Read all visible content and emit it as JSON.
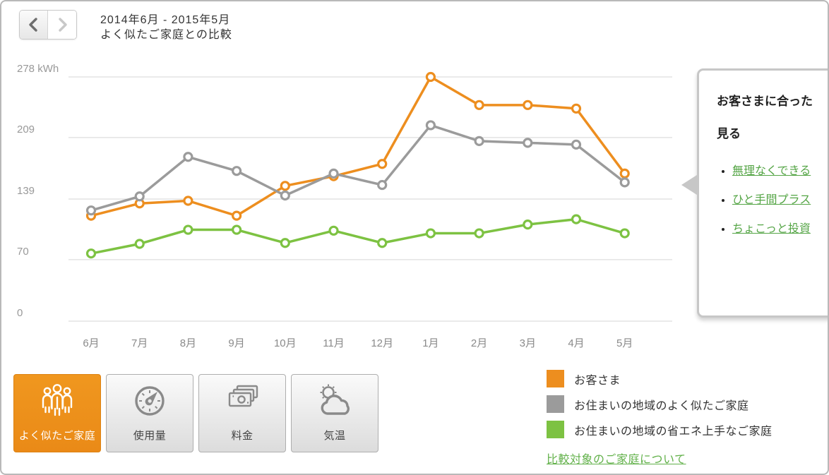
{
  "header": {
    "title_line1": "2014年6月 - 2015年5月",
    "title_line2": "よく似たご家庭との比較",
    "nav": {
      "prev_icon": "chevron-left",
      "next_icon": "chevron-right",
      "next_disabled": true
    }
  },
  "chart_data": {
    "type": "line",
    "title": "よく似たご家庭との比較",
    "xlabel": "",
    "ylabel": "kWh",
    "ylim": [
      0,
      278
    ],
    "grid": true,
    "legend_position": "bottom-right",
    "categories": [
      "6月",
      "7月",
      "8月",
      "9月",
      "10月",
      "11月",
      "12月",
      "1月",
      "2月",
      "3月",
      "4月",
      "5月"
    ],
    "yticks": [
      278,
      209,
      139,
      70,
      0
    ],
    "ytick_labels": [
      "278 kWh",
      "209",
      "139",
      "70",
      "0"
    ],
    "series": [
      {
        "name": "お客さま",
        "color": "#ED8E1F",
        "values": [
          120,
          134,
          137,
          120,
          154,
          165,
          179,
          278,
          246,
          246,
          242,
          168
        ]
      },
      {
        "name": "お住まいの地域のよく似たご家庭",
        "color": "#9B9B9B",
        "values": [
          126,
          142,
          187,
          171,
          143,
          168,
          155,
          223,
          205,
          203,
          201,
          158
        ]
      },
      {
        "name": "お住まいの地域の省エネ上手なご家庭",
        "color": "#7DC242",
        "values": [
          77,
          88,
          104,
          104,
          89,
          103,
          89,
          100,
          100,
          110,
          116,
          100
        ]
      }
    ]
  },
  "side_panel": {
    "heading_line1": "お客さまに合った",
    "heading_line2": "見る",
    "links": [
      "無理なくできる",
      "ひと手間プラス",
      "ちょこっと投資"
    ]
  },
  "tabs": [
    {
      "label": "よく似たご家庭",
      "icon": "people-icon",
      "active": true
    },
    {
      "label": "使用量",
      "icon": "gauge-icon",
      "active": false
    },
    {
      "label": "料金",
      "icon": "money-icon",
      "active": false
    },
    {
      "label": "気温",
      "icon": "weather-icon",
      "active": false
    }
  ],
  "legend": {
    "items": [
      {
        "label": "お客さま",
        "color": "#ED8E1F"
      },
      {
        "label": "お住まいの地域のよく似たご家庭",
        "color": "#9B9B9B"
      },
      {
        "label": "お住まいの地域の省エネ上手なご家庭",
        "color": "#7DC242"
      }
    ],
    "link": "比較対象のご家庭について"
  },
  "colors": {
    "accent_orange": "#ED8E1F",
    "series_gray": "#9B9B9B",
    "series_green": "#7DC242",
    "link_green": "#55A546",
    "gridline": "#E3E3E3",
    "axis_text": "#999999"
  }
}
